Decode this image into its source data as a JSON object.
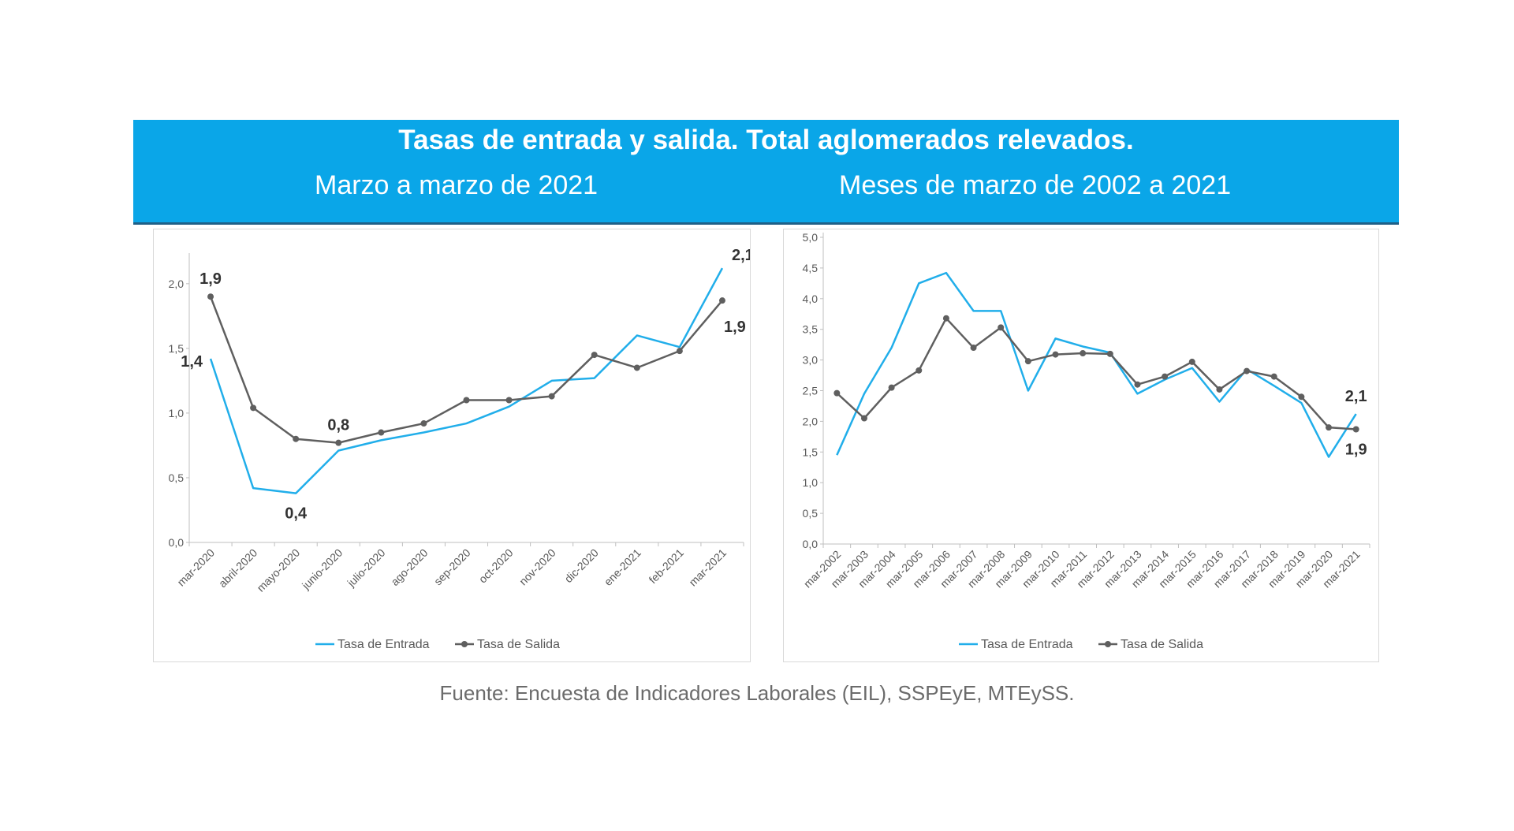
{
  "header": {
    "title": "Tasas de entrada y salida. Total aglomerados relevados.",
    "subtitle_left": "Marzo a marzo de 2021",
    "subtitle_right": "Meses de marzo de 2002 a 2021"
  },
  "colors": {
    "banner": "#0aa6e8",
    "entrada": "#21aeea",
    "salida": "#5f5f5f"
  },
  "source": "Fuente: Encuesta de Indicadores Laborales (EIL), SSPEyE, MTEySS.",
  "chart_data": [
    {
      "type": "line",
      "categories": [
        "mar-2020",
        "abril-2020",
        "mayo-2020",
        "junio-2020",
        "julio-2020",
        "ago-2020",
        "sep-2020",
        "oct-2020",
        "nov-2020",
        "dic-2020",
        "ene-2021",
        "feb-2021",
        "mar-2021"
      ],
      "series": [
        {
          "name": "Tasa de Entrada",
          "color": "#21aeea",
          "marker": false,
          "values": [
            1.42,
            0.42,
            0.38,
            0.71,
            0.79,
            0.85,
            0.92,
            1.05,
            1.25,
            1.27,
            1.6,
            1.51,
            2.12
          ]
        },
        {
          "name": "Tasa de Salida",
          "color": "#5f5f5f",
          "marker": true,
          "values": [
            1.9,
            1.04,
            0.8,
            0.77,
            0.85,
            0.92,
            1.1,
            1.1,
            1.13,
            1.45,
            1.35,
            1.48,
            1.87
          ]
        }
      ],
      "ylim": [
        0,
        2.2
      ],
      "yticks": [
        0,
        0.5,
        1.0,
        1.5,
        2.0
      ],
      "ytick_labels": [
        "0,0",
        "0,5",
        "1,0",
        "1,5",
        "2,0"
      ],
      "annotations": [
        {
          "text": "1,9",
          "series": 1,
          "index": 0,
          "pos": "above"
        },
        {
          "text": "1,4",
          "series": 0,
          "index": 0,
          "pos": "left"
        },
        {
          "text": "0,4",
          "series": 0,
          "index": 2,
          "pos": "below"
        },
        {
          "text": "0,8",
          "series": 1,
          "index": 3,
          "pos": "above"
        },
        {
          "text": "2,1",
          "series": 0,
          "index": 12,
          "pos": "above-right"
        },
        {
          "text": "1,9",
          "series": 1,
          "index": 12,
          "pos": "below-right"
        }
      ],
      "grid": false,
      "legend": "bottom"
    },
    {
      "type": "line",
      "categories": [
        "mar-2002",
        "mar-2003",
        "mar-2004",
        "mar-2005",
        "mar-2006",
        "mar-2007",
        "mar-2008",
        "mar-2009",
        "mar-2010",
        "mar-2011",
        "mar-2012",
        "mar-2013",
        "mar-2014",
        "mar-2015",
        "mar-2016",
        "mar-2017",
        "mar-2018",
        "mar-2019",
        "mar-2020",
        "mar-2021"
      ],
      "series": [
        {
          "name": "Tasa de Entrada",
          "color": "#21aeea",
          "marker": false,
          "values": [
            1.45,
            2.45,
            3.2,
            4.25,
            4.42,
            3.8,
            3.8,
            2.5,
            3.35,
            3.22,
            3.12,
            2.45,
            2.68,
            2.87,
            2.32,
            2.85,
            2.58,
            2.3,
            1.42,
            2.12
          ]
        },
        {
          "name": "Tasa de Salida",
          "color": "#5f5f5f",
          "marker": true,
          "values": [
            2.46,
            2.05,
            2.55,
            2.83,
            3.68,
            3.2,
            3.53,
            2.98,
            3.09,
            3.11,
            3.1,
            2.6,
            2.73,
            2.97,
            2.52,
            2.82,
            2.73,
            2.4,
            1.9,
            1.87
          ]
        }
      ],
      "ylim": [
        0,
        5.0
      ],
      "yticks": [
        0,
        0.5,
        1.0,
        1.5,
        2.0,
        2.5,
        3.0,
        3.5,
        4.0,
        4.5,
        5.0
      ],
      "ytick_labels": [
        "0,0",
        "0,5",
        "1,0",
        "1,5",
        "2,0",
        "2,5",
        "3,0",
        "3,5",
        "4,0",
        "4,5",
        "5,0"
      ],
      "annotations": [
        {
          "text": "2,1",
          "series": 0,
          "index": 19,
          "pos": "above"
        },
        {
          "text": "1,9",
          "series": 1,
          "index": 19,
          "pos": "below"
        }
      ],
      "grid": false,
      "legend": "bottom"
    }
  ]
}
